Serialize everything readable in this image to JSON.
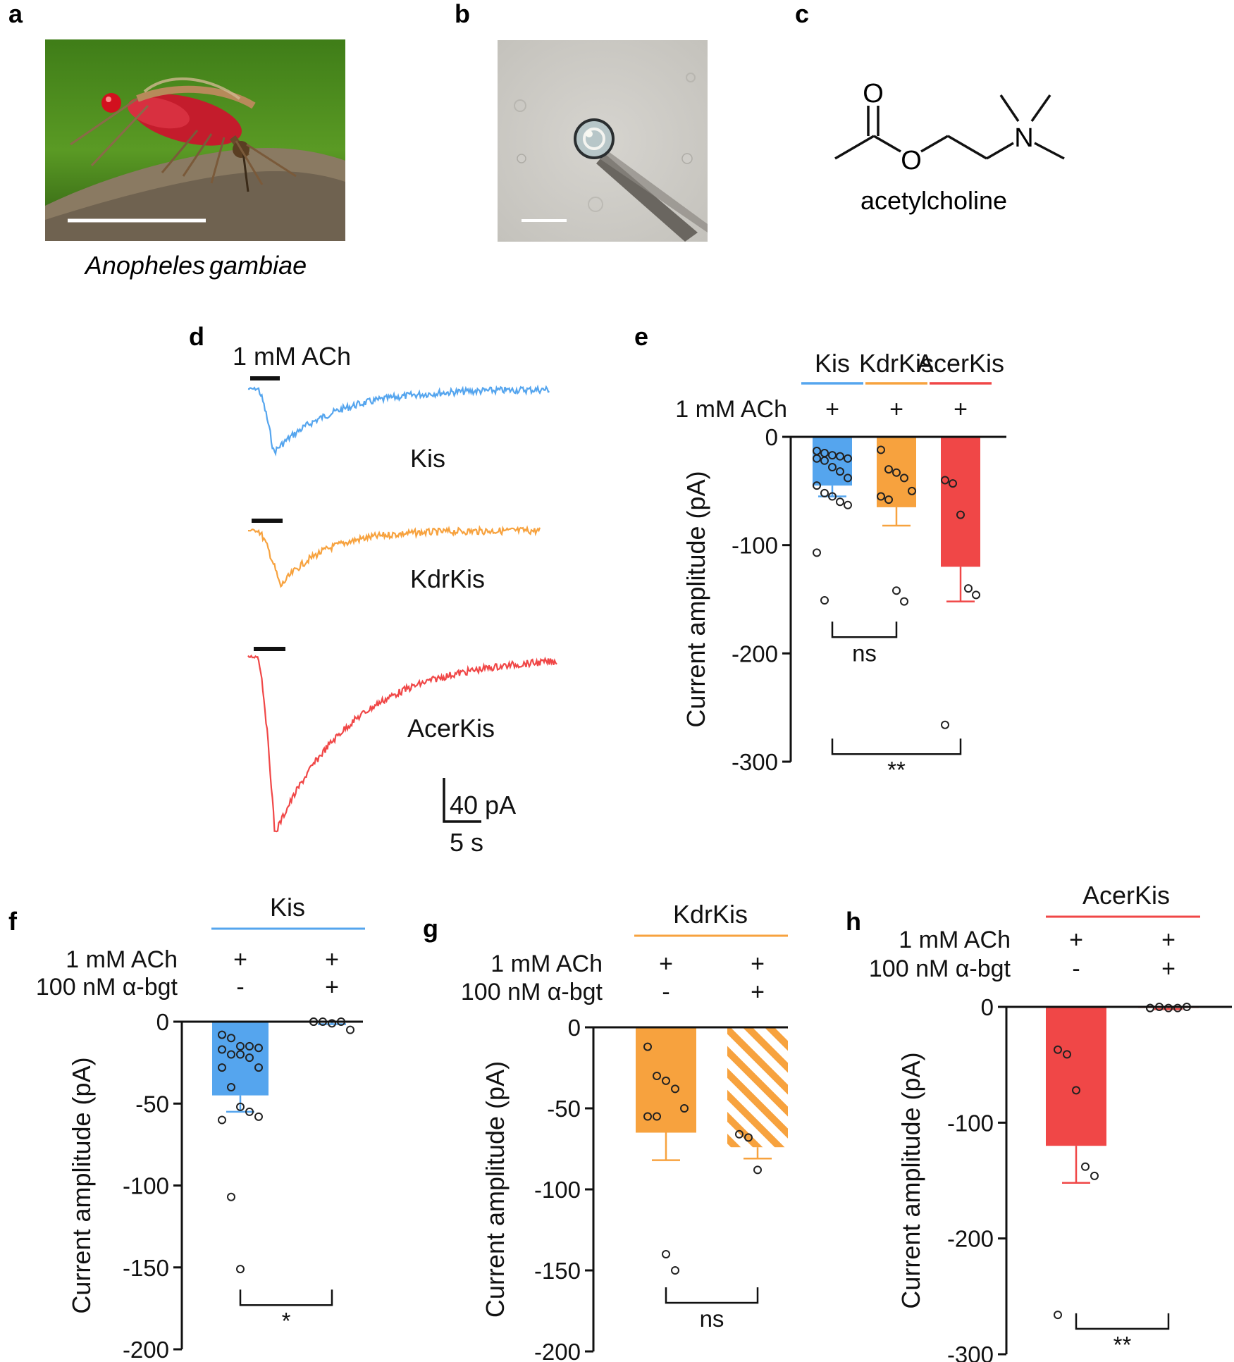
{
  "panels": {
    "a": {
      "letter": "a",
      "caption": "Anopheles gambiae",
      "caption_left": "Anopheles",
      "caption_right": "gambiae"
    },
    "b": {
      "letter": "b"
    },
    "c": {
      "letter": "c",
      "molecule": "acetylcholine",
      "atom_o1": "O",
      "atom_o2": "O",
      "atom_n": "N"
    },
    "d": {
      "letter": "d"
    },
    "e": {
      "letter": "e"
    },
    "f": {
      "letter": "f"
    },
    "g": {
      "letter": "g"
    },
    "h": {
      "letter": "h"
    }
  },
  "colors": {
    "kis": "#55a5ee",
    "kdrkis": "#f7a23e",
    "acerkis": "#f04747",
    "black": "#111111"
  },
  "chart_data": [
    {
      "panel": "d",
      "type": "line",
      "stimulus_label": "1 mM ACh",
      "scalebar_y": "40 pA",
      "scalebar_x": "5 s",
      "series": [
        {
          "name": "Kis",
          "color_key": "kis",
          "peak_pA": -44,
          "baseline_pA": 0
        },
        {
          "name": "KdrKis",
          "color_key": "kdrkis",
          "peak_pA": -38,
          "baseline_pA": 0
        },
        {
          "name": "AcerKis",
          "color_key": "acerkis",
          "peak_pA": -123,
          "baseline_pA": 0
        }
      ]
    },
    {
      "panel": "e",
      "type": "bar",
      "ylabel": "Current amplitude (pA)",
      "ylim": [
        -300,
        0
      ],
      "yticks": [
        0,
        -100,
        -200,
        -300
      ],
      "ytick_labels": [
        "0",
        "-100",
        "-200",
        "-300"
      ],
      "row_labels": [
        "1 mM ACh"
      ],
      "categories": [
        "Kis",
        "KdrKis",
        "AcerKis"
      ],
      "treatments": [
        [
          "+"
        ],
        [
          "+"
        ],
        [
          "+"
        ]
      ],
      "color_keys": [
        "kis",
        "kdrkis",
        "acerkis"
      ],
      "hatched": [
        false,
        false,
        false
      ],
      "values": [
        -45,
        -65,
        -120
      ],
      "errors": [
        10,
        17,
        32
      ],
      "points": [
        [
          -13,
          -15,
          -17,
          -18,
          -20,
          -20,
          -22,
          -28,
          -32,
          -38,
          -45,
          -52,
          -55,
          -60,
          -63,
          -107,
          -151
        ],
        [
          -12,
          -30,
          -33,
          -38,
          -50,
          -55,
          -58,
          -142,
          -152
        ],
        [
          -40,
          -43,
          -72,
          -140,
          -146,
          -266
        ]
      ],
      "comparisons": [
        {
          "pair": [
            0,
            1
          ],
          "label": "ns",
          "level": -185
        },
        {
          "pair": [
            0,
            2
          ],
          "label": "**",
          "level": -293
        }
      ]
    },
    {
      "panel": "f",
      "type": "bar",
      "header": "Kis",
      "header_color_key": "kis",
      "ylabel": "Current amplitude (pA)",
      "ylim": [
        -200,
        0
      ],
      "yticks": [
        0,
        -50,
        -100,
        -150,
        -200
      ],
      "ytick_labels": [
        "0",
        "-50",
        "-100",
        "-150",
        "-200"
      ],
      "row_labels": [
        "1 mM ACh",
        "100 nM α-bgt"
      ],
      "categories": [
        "1 mM ACh",
        "1 mM ACh + 100 nM α-bgt"
      ],
      "treatments": [
        [
          "+",
          "-"
        ],
        [
          "+",
          "+"
        ]
      ],
      "color_keys": [
        "kis",
        "kis"
      ],
      "hatched": [
        false,
        false
      ],
      "values": [
        -45,
        -0.5
      ],
      "errors": [
        10,
        1
      ],
      "points": [
        [
          -8,
          -10,
          -15,
          -15,
          -16,
          -17,
          -20,
          -20,
          -22,
          -28,
          -28,
          -40,
          -52,
          -55,
          -58,
          -60,
          -107,
          -151
        ],
        [
          0,
          0,
          -1,
          0,
          -5,
          0
        ]
      ],
      "comparisons": [
        {
          "pair": [
            0,
            1
          ],
          "label": "*",
          "level": -173
        }
      ]
    },
    {
      "panel": "g",
      "type": "bar",
      "header": "KdrKis",
      "header_color_key": "kdrkis",
      "ylabel": "Current amplitude (pA)",
      "ylim": [
        -200,
        0
      ],
      "yticks": [
        0,
        -50,
        -100,
        -150,
        -200
      ],
      "ytick_labels": [
        "0",
        "-50",
        "-100",
        "-150",
        "-200"
      ],
      "row_labels": [
        "1 mM ACh",
        "100 nM α-bgt"
      ],
      "categories": [
        "1 mM ACh",
        "1 mM ACh + 100 nM α-bgt"
      ],
      "treatments": [
        [
          "+",
          "-"
        ],
        [
          "+",
          "+"
        ]
      ],
      "color_keys": [
        "kdrkis",
        "kdrkis"
      ],
      "hatched": [
        false,
        true
      ],
      "values": [
        -65,
        -74
      ],
      "errors": [
        17,
        7
      ],
      "points": [
        [
          -12,
          -30,
          -33,
          -38,
          -50,
          -55,
          -55,
          -140,
          -150
        ],
        [
          -66,
          -68,
          -88
        ]
      ],
      "comparisons": [
        {
          "pair": [
            0,
            1
          ],
          "label": "ns",
          "level": -170
        }
      ]
    },
    {
      "panel": "h",
      "type": "bar",
      "header": "AcerKis",
      "header_color_key": "acerkis",
      "ylabel": "Current amplitude (pA)",
      "ylim": [
        -300,
        0
      ],
      "yticks": [
        0,
        -100,
        -200,
        -300
      ],
      "ytick_labels": [
        "0",
        "-100",
        "-200",
        "-300"
      ],
      "row_labels": [
        "1 mM ACh",
        "100 nM α-bgt"
      ],
      "categories": [
        "1 mM ACh",
        "1 mM ACh + 100 nM α-bgt"
      ],
      "treatments": [
        [
          "+",
          "-"
        ],
        [
          "+",
          "+"
        ]
      ],
      "color_keys": [
        "acerkis",
        "acerkis"
      ],
      "hatched": [
        false,
        false
      ],
      "values": [
        -120,
        -1
      ],
      "errors": [
        32,
        1
      ],
      "points": [
        [
          -37,
          -41,
          -72,
          -138,
          -146,
          -266
        ],
        [
          -1,
          0,
          -1,
          -1,
          0,
          -1
        ]
      ],
      "comparisons": [
        {
          "pair": [
            0,
            1
          ],
          "label": "**",
          "level": -278
        }
      ]
    }
  ]
}
